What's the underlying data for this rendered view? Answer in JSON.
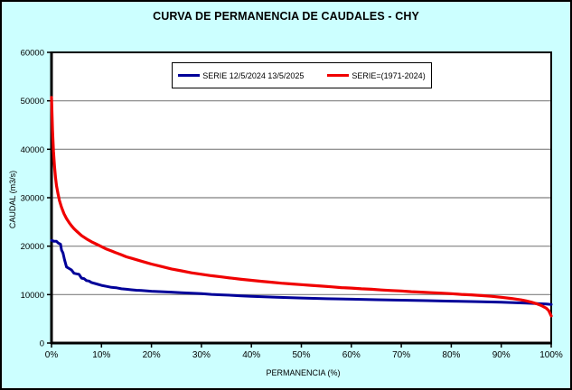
{
  "window": {
    "title": "CURVA DE PERMANENCIA DE CAUDALES - CHY"
  },
  "colors": {
    "background": "#CCFFFF",
    "plot_background": "#FFFFFF",
    "gridline": "#808080",
    "axis": "#000000",
    "series_blue": "#000099",
    "series_red": "#F00000"
  },
  "chart_data": {
    "type": "line",
    "title": "CURVA DE PERMANENCIA DE CAUDALES - CHY",
    "xlabel": "PERMANENCIA (%)",
    "ylabel": "CAUDAL (m3/s)",
    "xlim": [
      0,
      100
    ],
    "ylim": [
      0,
      60000
    ],
    "grid": "horizontal",
    "legend_position": "top-center-inside",
    "x_tick_labels": [
      "0%",
      "10%",
      "20%",
      "30%",
      "40%",
      "50%",
      "60%",
      "70%",
      "80%",
      "90%",
      "100%"
    ],
    "x_tick_values": [
      0,
      10,
      20,
      30,
      40,
      50,
      60,
      70,
      80,
      90,
      100
    ],
    "y_tick_labels": [
      "0",
      "10000",
      "20000",
      "30000",
      "40000",
      "50000",
      "60000"
    ],
    "y_tick_values": [
      0,
      10000,
      20000,
      30000,
      40000,
      50000,
      60000
    ],
    "series": [
      {
        "name": "SERIE 12/5/2024 13/5/2025",
        "color": "#000099",
        "width": 3,
        "points": [
          [
            0,
            21200
          ],
          [
            0.5,
            21000
          ],
          [
            1,
            21000
          ],
          [
            1.4,
            20600
          ],
          [
            1.8,
            20400
          ],
          [
            2,
            19200
          ],
          [
            2.3,
            18600
          ],
          [
            2.6,
            17200
          ],
          [
            3,
            15700
          ],
          [
            3.5,
            15400
          ],
          [
            4,
            15100
          ],
          [
            4.5,
            14400
          ],
          [
            5,
            14300
          ],
          [
            5.5,
            14200
          ],
          [
            6,
            13400
          ],
          [
            6.5,
            13300
          ],
          [
            7,
            12900
          ],
          [
            7.5,
            12800
          ],
          [
            8,
            12500
          ],
          [
            9,
            12200
          ],
          [
            10,
            11900
          ],
          [
            11,
            11700
          ],
          [
            12,
            11500
          ],
          [
            13,
            11400
          ],
          [
            14,
            11200
          ],
          [
            15,
            11100
          ],
          [
            16,
            11000
          ],
          [
            17,
            10900
          ],
          [
            18,
            10850
          ],
          [
            20,
            10700
          ],
          [
            22,
            10600
          ],
          [
            24,
            10500
          ],
          [
            26,
            10400
          ],
          [
            28,
            10300
          ],
          [
            30,
            10200
          ],
          [
            32,
            10050
          ],
          [
            34,
            9950
          ],
          [
            36,
            9850
          ],
          [
            38,
            9750
          ],
          [
            40,
            9650
          ],
          [
            45,
            9450
          ],
          [
            50,
            9300
          ],
          [
            55,
            9150
          ],
          [
            60,
            9050
          ],
          [
            65,
            8950
          ],
          [
            70,
            8850
          ],
          [
            75,
            8750
          ],
          [
            80,
            8650
          ],
          [
            85,
            8550
          ],
          [
            90,
            8450
          ],
          [
            95,
            8250
          ],
          [
            97,
            8150
          ],
          [
            99,
            8050
          ],
          [
            100,
            7950
          ]
        ]
      },
      {
        "name": "SERIE=(1971-2024)",
        "color": "#F00000",
        "width": 3.2,
        "points": [
          [
            0,
            50700
          ],
          [
            0.2,
            44000
          ],
          [
            0.4,
            39500
          ],
          [
            0.6,
            36500
          ],
          [
            0.8,
            34200
          ],
          [
            1,
            32500
          ],
          [
            1.3,
            30800
          ],
          [
            1.6,
            29400
          ],
          [
            2,
            28000
          ],
          [
            2.5,
            26700
          ],
          [
            3,
            25700
          ],
          [
            3.5,
            24900
          ],
          [
            4,
            24200
          ],
          [
            4.5,
            23600
          ],
          [
            5,
            23100
          ],
          [
            6,
            22200
          ],
          [
            7,
            21500
          ],
          [
            8,
            20900
          ],
          [
            9,
            20400
          ],
          [
            10,
            19900
          ],
          [
            11,
            19400
          ],
          [
            12,
            19000
          ],
          [
            13,
            18600
          ],
          [
            14,
            18200
          ],
          [
            15,
            17800
          ],
          [
            16,
            17500
          ],
          [
            17,
            17200
          ],
          [
            18,
            16900
          ],
          [
            19,
            16600
          ],
          [
            20,
            16300
          ],
          [
            22,
            15800
          ],
          [
            24,
            15300
          ],
          [
            26,
            14900
          ],
          [
            28,
            14500
          ],
          [
            30,
            14200
          ],
          [
            32,
            13900
          ],
          [
            34,
            13650
          ],
          [
            36,
            13400
          ],
          [
            38,
            13150
          ],
          [
            40,
            12950
          ],
          [
            42,
            12750
          ],
          [
            44,
            12550
          ],
          [
            46,
            12350
          ],
          [
            48,
            12200
          ],
          [
            50,
            12050
          ],
          [
            52,
            11900
          ],
          [
            54,
            11750
          ],
          [
            56,
            11600
          ],
          [
            58,
            11450
          ],
          [
            60,
            11350
          ],
          [
            62,
            11200
          ],
          [
            64,
            11100
          ],
          [
            66,
            10950
          ],
          [
            68,
            10850
          ],
          [
            70,
            10750
          ],
          [
            72,
            10600
          ],
          [
            74,
            10500
          ],
          [
            76,
            10400
          ],
          [
            78,
            10300
          ],
          [
            80,
            10200
          ],
          [
            82,
            10050
          ],
          [
            84,
            9950
          ],
          [
            86,
            9800
          ],
          [
            88,
            9650
          ],
          [
            90,
            9450
          ],
          [
            92,
            9200
          ],
          [
            94,
            8900
          ],
          [
            95,
            8700
          ],
          [
            96,
            8450
          ],
          [
            97,
            8150
          ],
          [
            98,
            7750
          ],
          [
            99,
            7200
          ],
          [
            99.5,
            6700
          ],
          [
            100,
            5600
          ]
        ]
      }
    ]
  }
}
